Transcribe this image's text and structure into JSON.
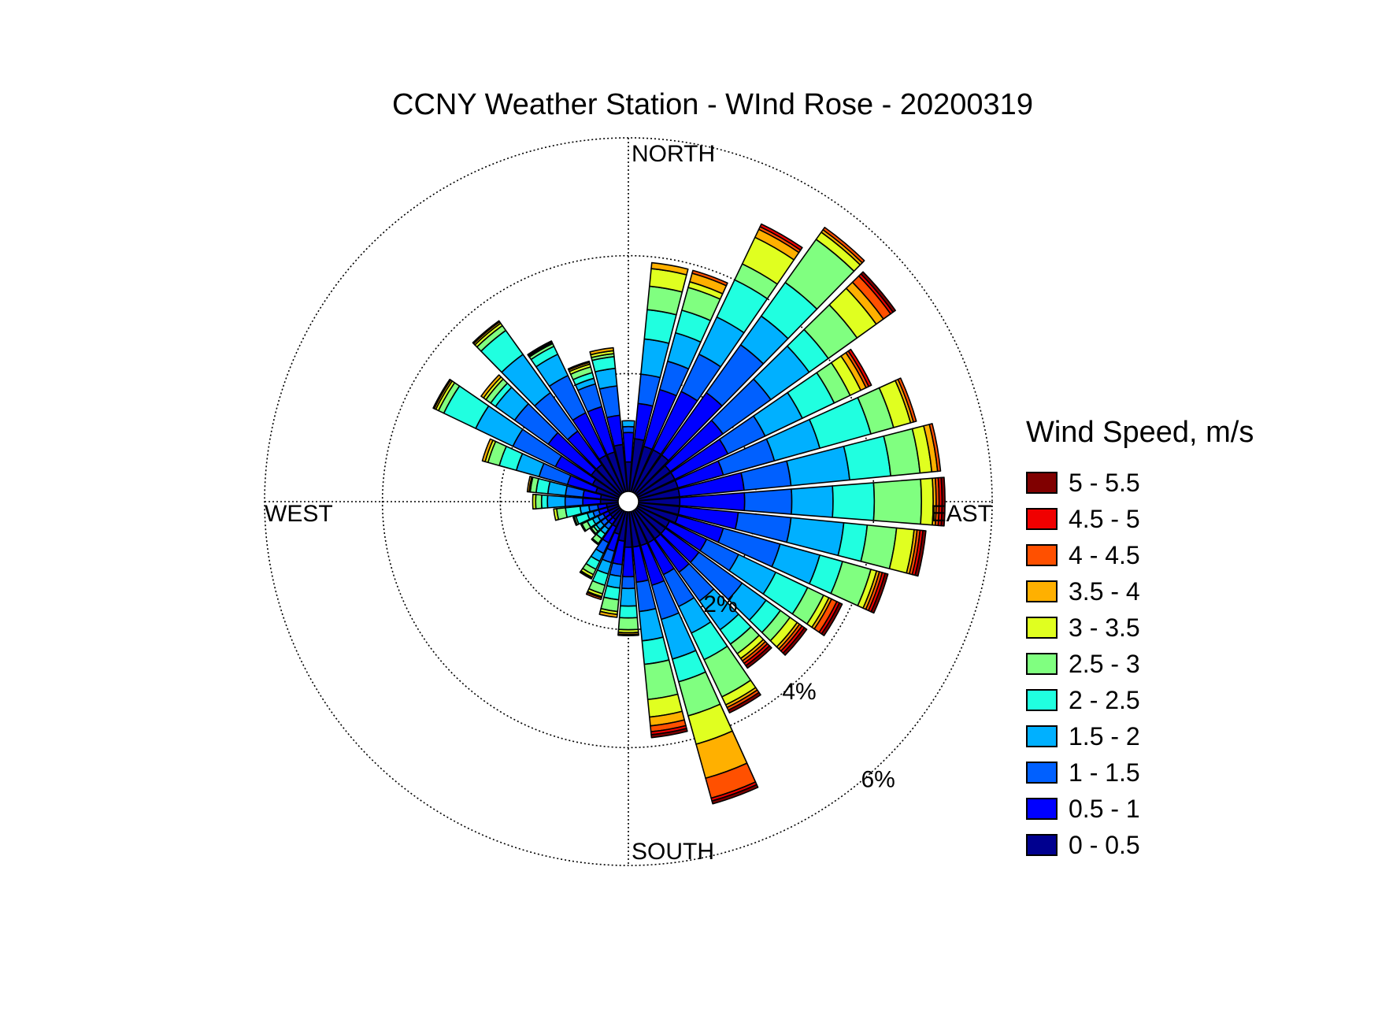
{
  "chart_data": {
    "type": "wind_rose",
    "title": "CCNY Weather Station - WInd Rose - 20200319",
    "direction_labels": [
      "NORTH",
      "EAST",
      "SOUTH",
      "WEST"
    ],
    "radial_ticks": [
      2,
      4,
      6
    ],
    "radial_tick_labels": [
      "2%",
      "4%",
      "6%"
    ],
    "r_max_percent": 6,
    "legend_title": "Wind Speed, m/s",
    "bins": [
      {
        "label": "0 - 0.5",
        "color": "#00008F"
      },
      {
        "label": "0.5 - 1",
        "color": "#0000FF"
      },
      {
        "label": "1 - 1.5",
        "color": "#0060FF"
      },
      {
        "label": "1.5 - 2",
        "color": "#00B0FF"
      },
      {
        "label": "2 - 2.5",
        "color": "#20FFE0"
      },
      {
        "label": "2.5 - 3",
        "color": "#80FF80"
      },
      {
        "label": "3 - 3.5",
        "color": "#E0FF20"
      },
      {
        "label": "3.5 - 4",
        "color": "#FFB000"
      },
      {
        "label": "4 - 4.5",
        "color": "#FF5000"
      },
      {
        "label": "4.5 - 5",
        "color": "#F00000"
      },
      {
        "label": "5 - 5.5",
        "color": "#800000"
      }
    ],
    "directions_deg": [
      0,
      10,
      20,
      30,
      40,
      50,
      60,
      70,
      80,
      90,
      100,
      110,
      120,
      130,
      140,
      150,
      160,
      170,
      180,
      190,
      200,
      210,
      220,
      230,
      240,
      250,
      260,
      270,
      280,
      290,
      300,
      310,
      320,
      330,
      340,
      350
    ],
    "sector_width_deg": 10,
    "cumulative_percent": [
      [
        0.5,
        1.0,
        1.1,
        1.2,
        1.2,
        1.2,
        1.2,
        1.2,
        1.2,
        1.2,
        1.2
      ],
      [
        0.9,
        1.5,
        2.0,
        2.6,
        3.1,
        3.5,
        3.8,
        3.9,
        3.9,
        3.9,
        3.9
      ],
      [
        0.8,
        1.8,
        2.3,
        2.8,
        3.2,
        3.6,
        3.7,
        3.85,
        3.9,
        3.9,
        3.9
      ],
      [
        0.8,
        1.9,
        2.6,
        3.3,
        4.0,
        4.3,
        4.8,
        4.95,
        5.0,
        5.05,
        5.05
      ],
      [
        0.8,
        2.1,
        3.1,
        3.7,
        4.4,
        5.3,
        5.45,
        5.5,
        5.55,
        5.55,
        5.55
      ],
      [
        0.7,
        1.8,
        2.8,
        3.6,
        4.0,
        4.6,
        5.0,
        5.15,
        5.3,
        5.35,
        5.4
      ],
      [
        0.7,
        1.7,
        2.4,
        3.1,
        3.7,
        4.0,
        4.2,
        4.3,
        4.35,
        4.4,
        4.4
      ],
      [
        0.7,
        1.5,
        2.4,
        3.2,
        4.1,
        4.5,
        4.8,
        4.85,
        4.9,
        4.9,
        4.9
      ],
      [
        0.7,
        1.8,
        2.6,
        3.6,
        4.3,
        4.8,
        5.0,
        5.1,
        5.15,
        5.15,
        5.15
      ],
      [
        0.7,
        1.8,
        2.6,
        3.3,
        4.0,
        4.8,
        5.0,
        5.05,
        5.1,
        5.15,
        5.2
      ],
      [
        0.7,
        1.7,
        2.6,
        3.5,
        3.9,
        4.4,
        4.7,
        4.75,
        4.8,
        4.85,
        4.9
      ],
      [
        0.7,
        1.5,
        2.5,
        3.2,
        3.6,
        4.1,
        4.2,
        4.25,
        4.3,
        4.35,
        4.4
      ],
      [
        0.6,
        1.3,
        1.9,
        2.6,
        3.2,
        3.5,
        3.6,
        3.65,
        3.75,
        3.8,
        3.85
      ],
      [
        0.6,
        1.3,
        2.2,
        2.7,
        3.0,
        3.2,
        3.35,
        3.4,
        3.45,
        3.5,
        3.55
      ],
      [
        0.6,
        1.3,
        1.9,
        2.5,
        2.8,
        3.0,
        3.1,
        3.15,
        3.2,
        3.25,
        3.3
      ],
      [
        0.6,
        1.2,
        1.8,
        2.3,
        2.8,
        3.5,
        3.65,
        3.7,
        3.75,
        3.75,
        3.8
      ],
      [
        0.6,
        1.3,
        1.9,
        2.6,
        3.0,
        3.6,
        4.1,
        4.7,
        5.05,
        5.1,
        5.15
      ],
      [
        0.6,
        1.2,
        1.7,
        2.2,
        2.6,
        3.2,
        3.5,
        3.65,
        3.75,
        3.8,
        3.85
      ],
      [
        0.6,
        1.1,
        1.3,
        1.6,
        1.8,
        2.0,
        2.05,
        2.08,
        2.1,
        2.1,
        2.1
      ],
      [
        0.5,
        0.9,
        1.1,
        1.3,
        1.5,
        1.7,
        1.75,
        1.8,
        1.8,
        1.8,
        1.8
      ],
      [
        0.4,
        0.7,
        0.9,
        1.1,
        1.3,
        1.45,
        1.5,
        1.52,
        1.55,
        1.55,
        1.55
      ],
      [
        0.3,
        0.6,
        0.8,
        0.95,
        1.1,
        1.2,
        1.25,
        1.27,
        1.28,
        1.28,
        1.28
      ],
      [
        0.2,
        0.3,
        0.4,
        0.5,
        0.6,
        0.7,
        0.72,
        0.72,
        0.72,
        0.72,
        0.72
      ],
      [
        0.2,
        0.3,
        0.4,
        0.5,
        0.55,
        0.6,
        0.62,
        0.62,
        0.62,
        0.62,
        0.62
      ],
      [
        0.2,
        0.3,
        0.4,
        0.5,
        0.6,
        0.7,
        0.72,
        0.72,
        0.72,
        0.72,
        0.72
      ],
      [
        0.2,
        0.35,
        0.45,
        0.55,
        0.75,
        0.78,
        0.8,
        0.8,
        0.8,
        0.8,
        0.8
      ],
      [
        0.2,
        0.35,
        0.5,
        0.65,
        0.9,
        1.05,
        1.1,
        1.1,
        1.1,
        1.1,
        1.1
      ],
      [
        0.3,
        0.6,
        0.9,
        1.2,
        1.3,
        1.4,
        1.45,
        1.45,
        1.45,
        1.45,
        1.45
      ],
      [
        0.3,
        0.6,
        0.9,
        1.2,
        1.4,
        1.5,
        1.52,
        1.55,
        1.55,
        1.55,
        1.55
      ],
      [
        0.4,
        0.9,
        1.4,
        1.8,
        2.1,
        2.3,
        2.35,
        2.4,
        2.4,
        2.4,
        2.4
      ],
      [
        0.5,
        1.2,
        2.0,
        2.7,
        3.3,
        3.4,
        3.45,
        3.48,
        3.5,
        3.5,
        3.5
      ],
      [
        0.6,
        1.5,
        2.2,
        2.6,
        2.7,
        2.8,
        2.85,
        2.9,
        2.9,
        2.9,
        2.9
      ],
      [
        0.6,
        1.3,
        2.1,
        2.9,
        3.4,
        3.5,
        3.55,
        3.58,
        3.6,
        3.6,
        3.6
      ],
      [
        0.7,
        1.5,
        2.2,
        2.6,
        2.75,
        2.8,
        2.82,
        2.84,
        2.85,
        2.85,
        2.85
      ],
      [
        0.7,
        1.5,
        1.9,
        2.0,
        2.1,
        2.2,
        2.25,
        2.28,
        2.3,
        2.3,
        2.3
      ],
      [
        0.8,
        1.3,
        1.8,
        2.1,
        2.3,
        2.35,
        2.4,
        2.45,
        2.45,
        2.45,
        2.45
      ]
    ]
  }
}
